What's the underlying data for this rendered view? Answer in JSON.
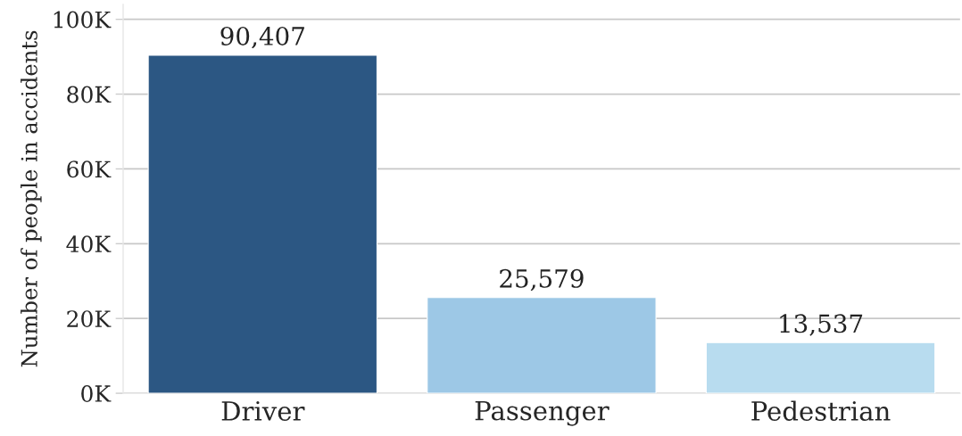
{
  "chart_data": {
    "type": "bar",
    "ylabel": "Number of people in accidents",
    "categories": [
      "Driver",
      "Passenger",
      "Pedestrian"
    ],
    "values": [
      90407,
      25579,
      13537
    ],
    "colors": [
      "#2c5783",
      "#9dc8e6",
      "#b8dcef"
    ],
    "value_labels": [
      "90,407",
      "25,579",
      "13,537"
    ],
    "ylim": [
      0,
      104000
    ],
    "yticks": [
      {
        "value": 0,
        "label": "0K"
      },
      {
        "value": 20000,
        "label": "20K"
      },
      {
        "value": 40000,
        "label": "40K"
      },
      {
        "value": 60000,
        "label": "60K"
      },
      {
        "value": 80000,
        "label": "80K"
      },
      {
        "value": 100000,
        "label": "100K"
      }
    ],
    "grid": "y"
  }
}
